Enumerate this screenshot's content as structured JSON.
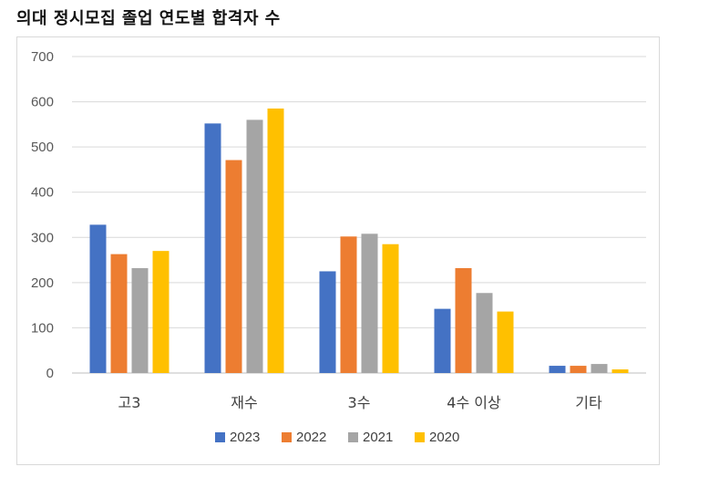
{
  "page": {
    "title": "의대 정시모집 졸업 연도별 합격자 수"
  },
  "chart_data": {
    "type": "bar",
    "title": "",
    "xlabel": "",
    "ylabel": "",
    "categories": [
      "고3",
      "재수",
      "3수",
      "4수 이상",
      "기타"
    ],
    "series": [
      {
        "name": "2023",
        "color": "#4472C4",
        "values": [
          328,
          552,
          225,
          142,
          16
        ]
      },
      {
        "name": "2022",
        "color": "#ED7D31",
        "values": [
          263,
          471,
          302,
          232,
          16
        ]
      },
      {
        "name": "2021",
        "color": "#A5A5A5",
        "values": [
          232,
          560,
          308,
          177,
          20
        ]
      },
      {
        "name": "2020",
        "color": "#FFC000",
        "values": [
          270,
          585,
          285,
          136,
          8
        ]
      }
    ],
    "ylim": [
      0,
      700
    ],
    "yticks": [
      0,
      100,
      200,
      300,
      400,
      500,
      600,
      700
    ],
    "grid": true,
    "legend_position": "bottom"
  }
}
